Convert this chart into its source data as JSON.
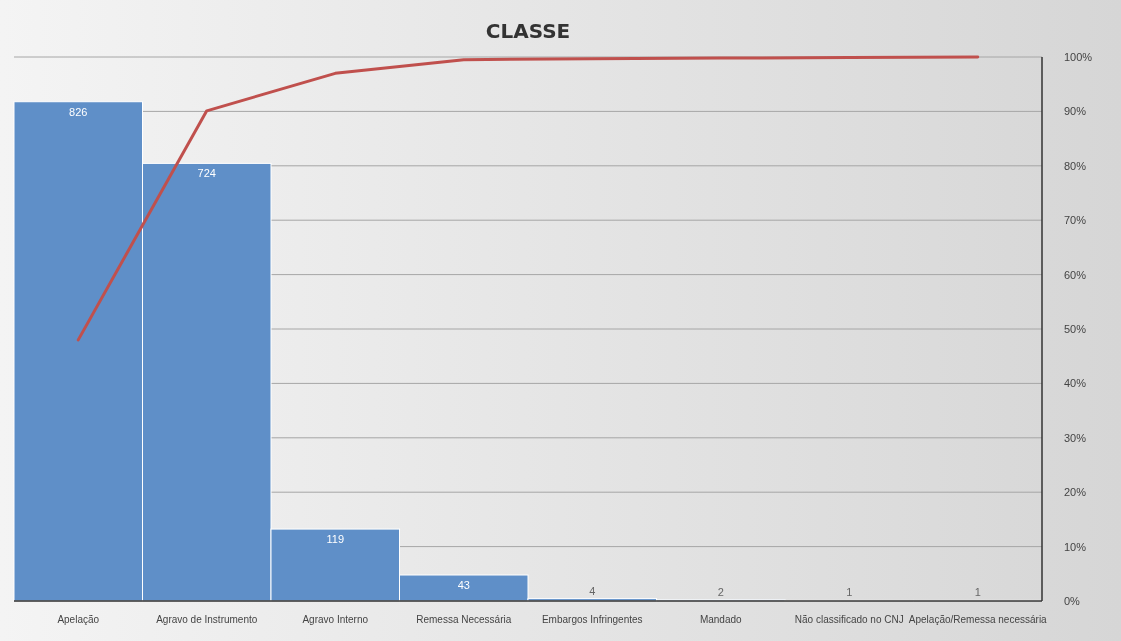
{
  "chart_data": {
    "type": "bar",
    "title": "CLASSE",
    "categories": [
      "Apelação",
      "Agravo de Instrumento",
      "Agravo Interno",
      "Remessa Necessária",
      "Embargos Infringentes",
      "Mandado",
      "Não classificado no CNJ",
      "Apelação/Remessa necessária"
    ],
    "series": [
      {
        "color": "#5f8fc8",
        "values": [
          826,
          724,
          119,
          43,
          4,
          2,
          1,
          1
        ],
        "value_labels": [
          "826",
          "724",
          "119",
          "43",
          "4",
          "2",
          "1",
          "1"
        ]
      },
      {
        "type": "line",
        "axis": "y2",
        "color": "#c0504d",
        "values": [
          48.0,
          90.1,
          97.0,
          99.5,
          99.7,
          99.8,
          99.9,
          100
        ]
      }
    ],
    "ylim": [
      0,
      900
    ],
    "y2lim": [
      0,
      100
    ],
    "y2ticks": [
      {
        "value": 0,
        "label": "0%"
      },
      {
        "value": 10,
        "label": "10%"
      },
      {
        "value": 20,
        "label": "20%"
      },
      {
        "value": 30,
        "label": "30%"
      },
      {
        "value": 40,
        "label": "40%"
      },
      {
        "value": 50,
        "label": "50%"
      },
      {
        "value": 60,
        "label": "60%"
      },
      {
        "value": 70,
        "label": "70%"
      },
      {
        "value": 80,
        "label": "80%"
      },
      {
        "value": 90,
        "label": "90%"
      },
      {
        "value": 100,
        "label": "100%"
      }
    ],
    "grid": true,
    "marker": "none"
  }
}
